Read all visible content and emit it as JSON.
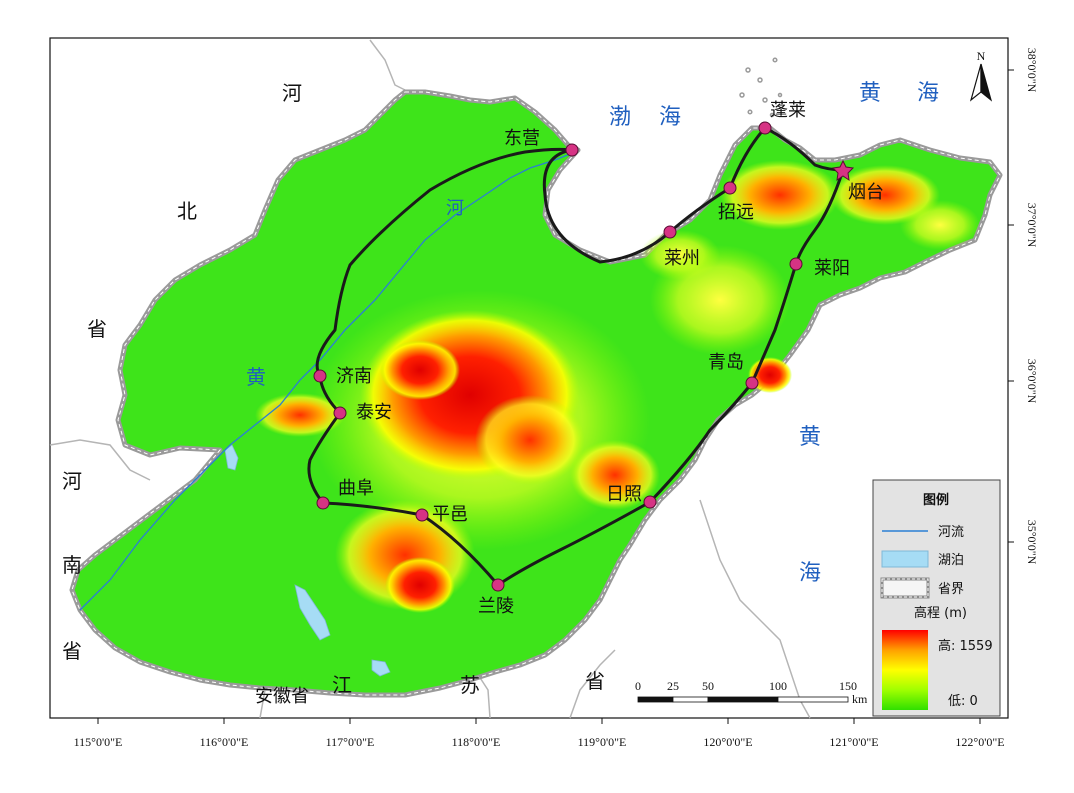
{
  "map": {
    "longitude_labels": [
      "115°0'0\"E",
      "116°0'0\"E",
      "117°0'0\"E",
      "118°0'0\"E",
      "119°0'0\"E",
      "120°0'0\"E",
      "121°0'0\"E",
      "122°0'0\"E"
    ],
    "latitude_labels": [
      "38°0'0\"N",
      "37°0'0\"N",
      "36°0'0\"N",
      "35°0'0\"N"
    ],
    "north_arrow": {
      "letter": "N",
      "icon": "north-arrow-icon"
    },
    "region_labels": {
      "hebei_1": "河",
      "hebei_2": "北",
      "hebei_3": "省",
      "henan_1": "河",
      "henan_2": "南",
      "henan_3": "省",
      "jiangsu_1": "江",
      "jiangsu_2": "苏",
      "jiangsu_3": "省",
      "anhui": "安徽省"
    },
    "water_labels": {
      "bohai_1": "渤",
      "bohai_2": "海",
      "huanghai_ne_1": "黄",
      "huanghai_ne_2": "海",
      "huanghai_e_1": "黄",
      "huanghai_e_2": "海",
      "yellow_river_1": "黄",
      "yellow_river_2": "河"
    },
    "cities": [
      {
        "name": "东营",
        "marker": "circle"
      },
      {
        "name": "蓬莱",
        "marker": "circle"
      },
      {
        "name": "烟台",
        "marker": "star"
      },
      {
        "name": "招远",
        "marker": "circle"
      },
      {
        "name": "莱州",
        "marker": "circle"
      },
      {
        "name": "莱阳",
        "marker": "circle"
      },
      {
        "name": "青岛",
        "marker": "circle"
      },
      {
        "name": "日照",
        "marker": "circle"
      },
      {
        "name": "兰陵",
        "marker": "circle"
      },
      {
        "name": "平邑",
        "marker": "circle"
      },
      {
        "name": "曲阜",
        "marker": "circle"
      },
      {
        "name": "泰安",
        "marker": "circle"
      },
      {
        "name": "济南",
        "marker": "circle"
      }
    ],
    "scale_bar": {
      "ticks": [
        "0",
        "25",
        "50",
        "100",
        "150"
      ],
      "unit": "km"
    },
    "legend": {
      "title": "图例",
      "items": [
        {
          "label": "河流",
          "symbol": "line",
          "color": "#2b7fd4"
        },
        {
          "label": "湖泊",
          "symbol": "fill",
          "color": "#a6dcf5"
        },
        {
          "label": "省界",
          "symbol": "dashed-box",
          "color": "#888888"
        }
      ],
      "elevation": {
        "title": "高程 (m)",
        "high_label": "高: 1559",
        "low_label": "低: 0",
        "colors": [
          "#ff0000",
          "#ffa000",
          "#ffff00",
          "#a0ff00",
          "#30e000"
        ]
      }
    },
    "colors": {
      "route": "#1a1a1a",
      "city_marker": "#d63384",
      "sea_text": "#1f5fbf",
      "border": "#9a9a9a"
    }
  }
}
